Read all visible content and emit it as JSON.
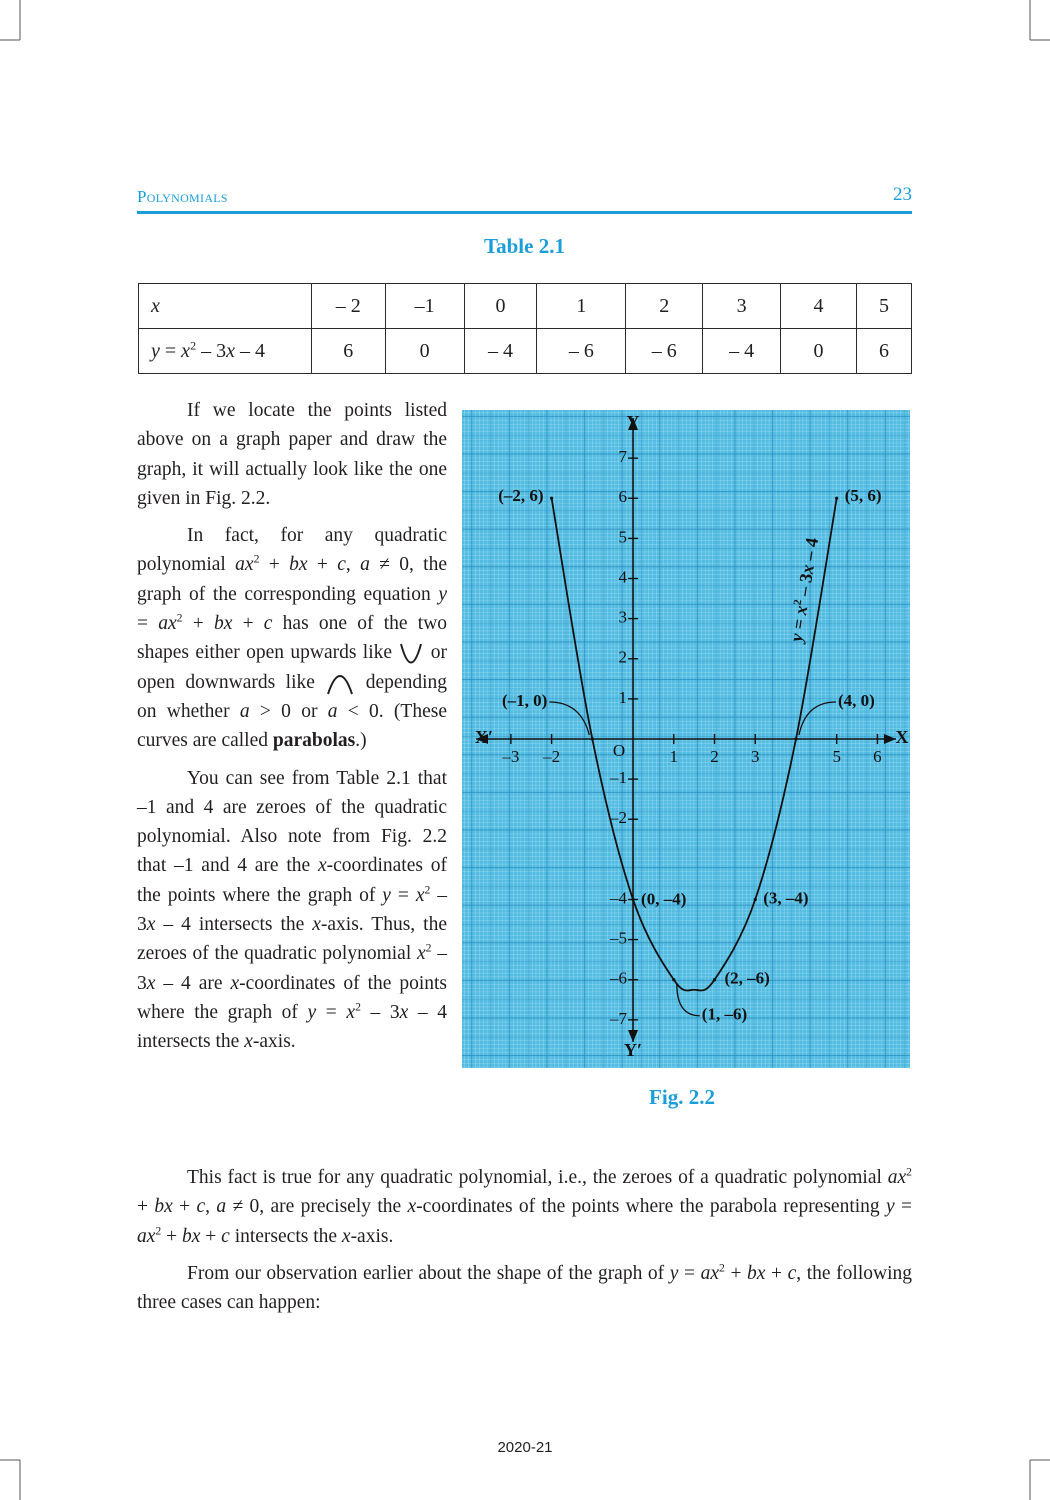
{
  "header": {
    "title": "Polynomials",
    "page_number": "23"
  },
  "table": {
    "title": "Table 2.1",
    "rows": [
      [
        [
          "x"
        ],
        "– 2",
        "–1",
        "0",
        "1",
        "2",
        "3",
        "4",
        "5"
      ],
      [
        [
          "y",
          " = ",
          "x",
          "2",
          " – 3",
          "x",
          " – 4"
        ],
        "6",
        "0",
        "– 4",
        "– 6",
        "– 6",
        "– 4",
        "0",
        "6"
      ]
    ]
  },
  "paragraphs": [
    [
      "If we locate the points listed above on a graph paper and draw the graph, it will actually look like the one given in Fig. 2.2."
    ],
    [
      "In fact, for any quadratic polynomial ",
      "ax",
      "2",
      " + ",
      "bx",
      " + ",
      "c",
      ", ",
      "a",
      " ≠ 0, the graph of the corresponding equation ",
      "y",
      " = ",
      "ax",
      "2",
      " + ",
      "bx",
      " + ",
      "c",
      " has one of the two shapes either open upwards like ",
      " or open downwards like ",
      " depending on whether ",
      "a",
      " > 0 or ",
      "a",
      " < 0. (These curves are called ",
      "parabolas",
      ".)"
    ],
    [
      "You can see from Table 2.1 that –1 and 4 are zeroes of the quadratic polynomial. Also note from Fig. 2.2 that –1 and 4 are the ",
      "x",
      "-coordinates of the points where the graph of ",
      "y",
      " = ",
      "x",
      "2",
      " – 3",
      "x",
      " – 4 intersects the ",
      "x",
      "-axis. Thus, the zeroes of the quadratic polynomial ",
      "x",
      "2",
      " – 3",
      "x",
      " – 4 are ",
      "x",
      "-coordinates of the points where the graph of ",
      "y",
      " = ",
      "x",
      "2",
      " – 3",
      "x",
      " – 4 intersects the ",
      "x",
      "-axis."
    ],
    [
      "This fact is true for any quadratic polynomial, i.e., the zeroes of a quadratic polynomial ",
      "ax",
      "2",
      " + ",
      "bx",
      " + ",
      "c",
      ", ",
      "a",
      " ≠ 0, are precisely the ",
      "x",
      "-coordinates of the points where the parabola representing ",
      "y",
      " = ",
      "ax",
      "2",
      " + ",
      "bx",
      " + ",
      "c",
      " intersects the ",
      "x",
      "-axis."
    ],
    [
      "From our observation earlier about the shape of the graph of ",
      "y",
      " = ",
      "ax",
      "2",
      " + ",
      "bx",
      " + ",
      "c",
      ", the following three cases can happen:"
    ]
  ],
  "figure": {
    "caption": "Fig. 2.2",
    "x_axis_label": "X",
    "x_axis_label_negative": "X′",
    "y_axis_label": "Y",
    "y_axis_label_negative": "Y′",
    "origin_label": "O",
    "xlim": [
      -4.2,
      6.8
    ],
    "ylim": [
      -8.2,
      8.2
    ],
    "xticks": [
      {
        "value": -3,
        "label": "–3"
      },
      {
        "value": -2,
        "label": "–2"
      },
      1,
      2,
      3,
      5,
      6
    ],
    "yticks": [
      7,
      6,
      5,
      4,
      3,
      2,
      1,
      {
        "value": -1,
        "label": "–1"
      },
      {
        "value": -2,
        "label": "–2"
      },
      {
        "value": -4,
        "label": "–4"
      },
      {
        "value": -5,
        "label": "–5"
      },
      {
        "value": -6,
        "label": "–6"
      },
      {
        "value": -7,
        "label": "–7"
      }
    ],
    "curve": {
      "x": [
        -2,
        -1,
        0,
        1,
        1.5,
        2,
        3,
        4,
        5
      ],
      "y": [
        6,
        0,
        -4,
        -6,
        -6.25,
        -6,
        -4,
        0,
        6
      ]
    },
    "curve_label": [
      "y",
      " = ",
      "x",
      "2",
      " – 3",
      "x",
      " – 4"
    ],
    "points": [
      {
        "label": "(–2, 6)",
        "x": -2,
        "y": 6
      },
      {
        "label": "(–1, 0)",
        "x": -1,
        "y": 0
      },
      {
        "label": "(0, –4)",
        "x": 0,
        "y": -4
      },
      {
        "label": "(1, –6)",
        "x": 1,
        "y": -6
      },
      {
        "label": "(2, –6)",
        "x": 2,
        "y": -6
      },
      {
        "label": "(3, –4)",
        "x": 3,
        "y": -4
      },
      {
        "label": "(4, 0)",
        "x": 4,
        "y": 0
      },
      {
        "label": "(5, 6)",
        "x": 5,
        "y": 6
      }
    ]
  },
  "footer": "2020-21"
}
